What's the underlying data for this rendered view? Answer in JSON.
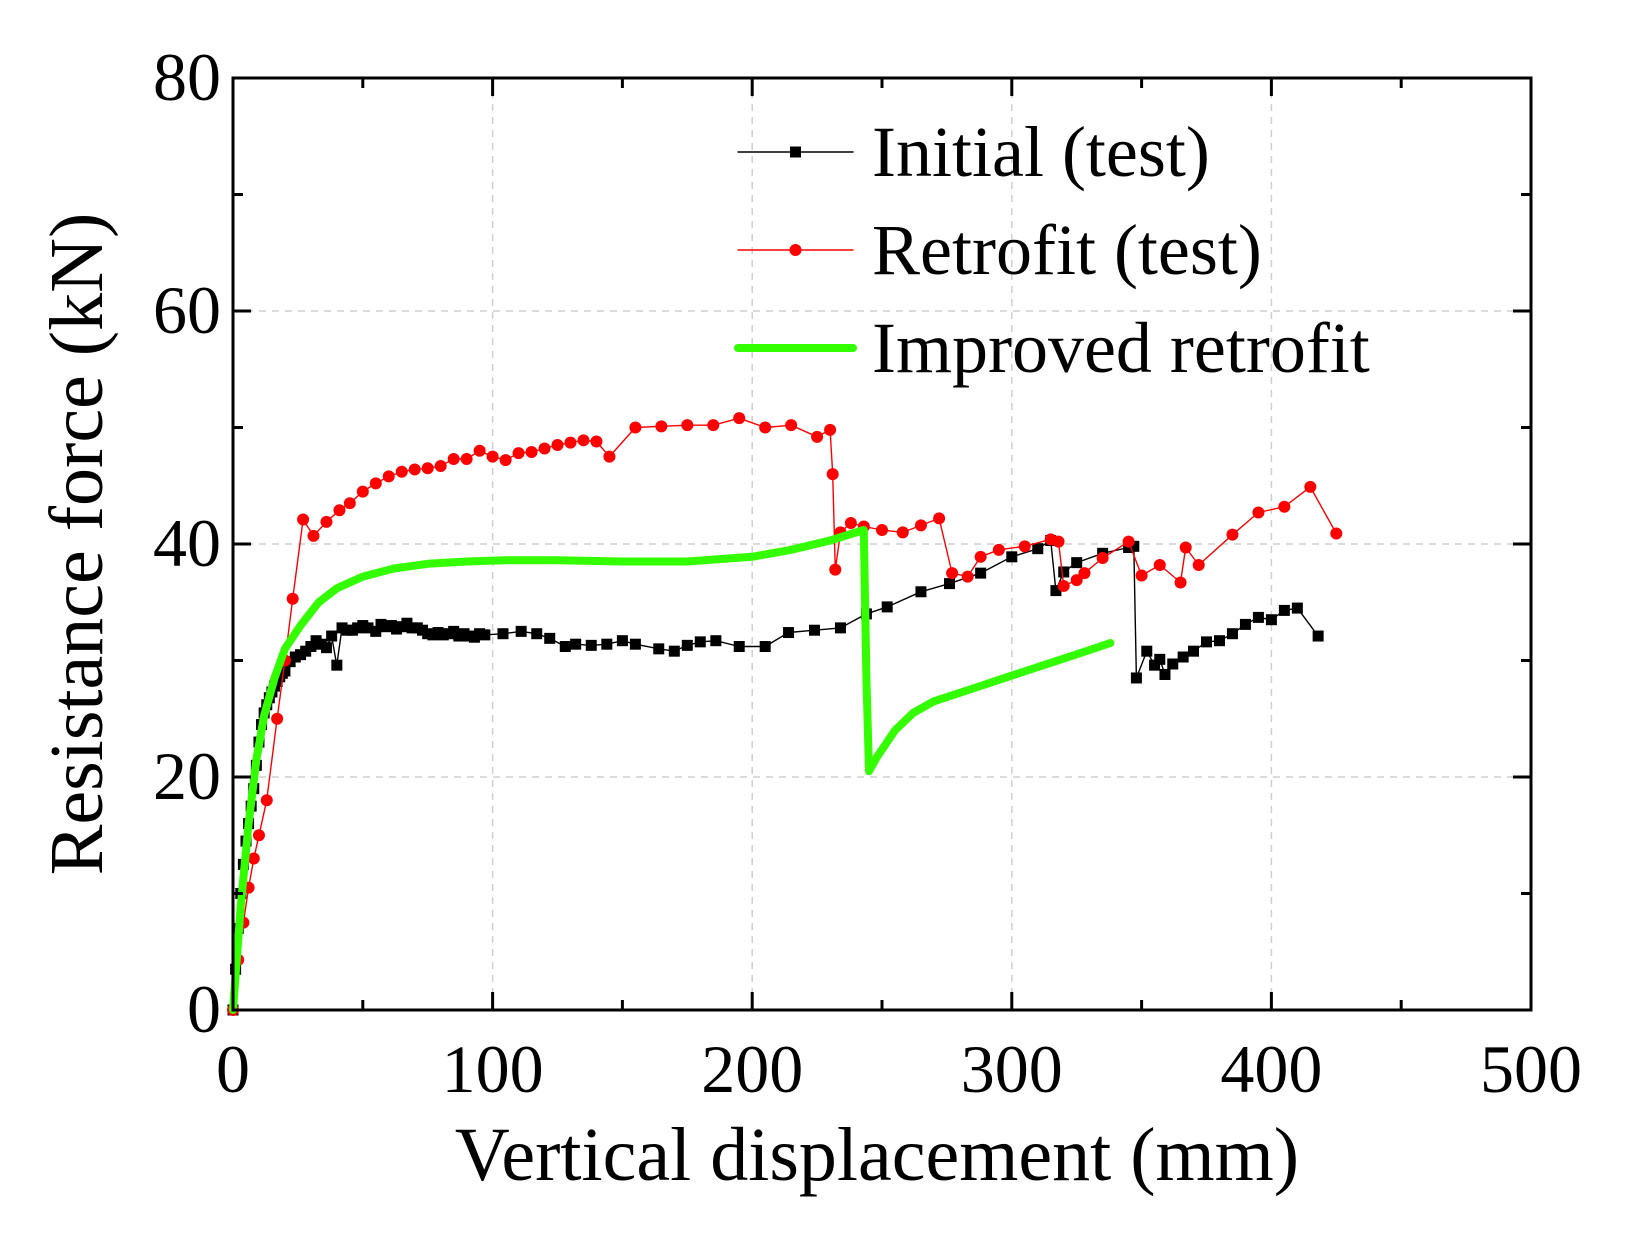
{
  "chart_data": {
    "type": "line",
    "title": "",
    "xlabel": "Vertical displacement (mm)",
    "ylabel": "Resistance force (kN)",
    "xlim": [
      0,
      500
    ],
    "ylim": [
      0,
      80
    ],
    "xticks": [
      0,
      100,
      200,
      300,
      400,
      500
    ],
    "yticks": [
      0,
      20,
      40,
      60,
      80
    ],
    "grid": true,
    "legend_position": "top-right",
    "series": [
      {
        "name": "Initial (test)",
        "color": "#000000",
        "marker": "square",
        "line": "thin",
        "x": [
          0,
          1,
          2,
          3,
          4,
          5,
          6,
          7,
          8,
          9,
          10,
          11,
          12,
          13,
          14,
          15,
          16,
          17,
          18,
          19,
          20,
          22,
          24,
          26,
          28,
          30,
          32,
          34,
          36,
          38,
          40,
          42,
          44,
          46,
          48,
          50,
          52,
          55,
          57,
          59,
          61,
          63,
          65,
          67,
          69,
          71,
          73,
          75,
          77,
          79,
          81,
          83,
          85,
          87,
          89,
          91,
          93,
          95,
          97,
          104,
          111,
          117,
          122,
          128,
          132,
          138,
          144,
          150,
          155,
          164,
          170,
          175,
          180,
          186,
          195,
          205,
          214,
          224,
          234,
          244,
          252,
          265,
          276,
          288,
          300,
          310,
          315,
          317,
          320,
          325,
          335,
          345,
          347,
          348,
          352,
          355,
          357,
          359,
          362,
          366,
          370,
          375,
          380,
          385,
          390,
          395,
          400,
          405,
          410,
          418
        ],
        "values": [
          0,
          3.5,
          7,
          10,
          12.5,
          14.5,
          16,
          17.5,
          19,
          21,
          23,
          24.5,
          25.5,
          26.2,
          26.8,
          27.3,
          27.8,
          28.2,
          28.6,
          28.9,
          29.1,
          29.9,
          30.3,
          30.5,
          30.8,
          31.2,
          31.7,
          31.4,
          31.1,
          32.1,
          29.6,
          32.8,
          32.6,
          32.6,
          32.8,
          33.0,
          32.8,
          32.5,
          33.1,
          32.9,
          33.0,
          32.7,
          32.9,
          33.2,
          32.8,
          32.8,
          32.6,
          32.3,
          32.2,
          32.4,
          32.2,
          32.3,
          32.5,
          32.1,
          32.3,
          32.1,
          32.0,
          32.3,
          32.2,
          32.3,
          32.5,
          32.3,
          31.9,
          31.2,
          31.4,
          31.3,
          31.4,
          31.7,
          31.4,
          31.0,
          30.8,
          31.3,
          31.6,
          31.7,
          31.2,
          31.2,
          32.4,
          32.6,
          32.8,
          34.0,
          34.6,
          35.9,
          36.6,
          37.5,
          38.9,
          39.6,
          40.3,
          36.0,
          37.6,
          38.4,
          39.2,
          39.7,
          39.8,
          28.5,
          30.8,
          29.6,
          30.1,
          28.8,
          29.7,
          30.3,
          30.8,
          31.6,
          31.7,
          32.3,
          33.1,
          33.7,
          33.5,
          34.3,
          34.5,
          32.1
        ]
      },
      {
        "name": "Retrofit (test)",
        "color": "#ff0000",
        "marker": "circle",
        "line": "thin",
        "x": [
          0,
          2,
          4,
          6,
          8,
          10,
          13,
          17,
          20,
          23,
          27,
          31,
          36,
          41,
          45,
          50,
          55,
          60,
          65,
          70,
          75,
          80,
          85,
          90,
          95,
          100,
          105,
          110,
          115,
          120,
          125,
          130,
          135,
          140,
          145,
          155,
          165,
          175,
          185,
          195,
          205,
          215,
          225,
          230,
          231,
          232,
          234,
          238,
          243,
          250,
          258,
          265,
          272,
          277,
          283,
          288,
          295,
          305,
          315,
          318,
          320,
          325,
          328,
          335,
          345,
          350,
          357,
          365,
          367,
          372,
          385,
          395,
          405,
          415,
          425
        ],
        "values": [
          0,
          4.3,
          7.5,
          10.5,
          13,
          15,
          18,
          25,
          30,
          35.3,
          42.1,
          40.7,
          41.9,
          42.9,
          43.5,
          44.5,
          45.2,
          45.8,
          46.2,
          46.4,
          46.5,
          46.7,
          47.3,
          47.3,
          48,
          47.5,
          47.2,
          47.8,
          47.9,
          48.2,
          48.5,
          48.7,
          48.9,
          48.8,
          47.5,
          50.0,
          50.1,
          50.2,
          50.2,
          50.8,
          50.0,
          50.2,
          49.2,
          49.8,
          46.0,
          37.8,
          41.0,
          41.8,
          41.5,
          41.2,
          41.0,
          41.6,
          42.2,
          37.5,
          37.2,
          38.9,
          39.5,
          39.8,
          40.4,
          40.2,
          36.4,
          36.9,
          37.5,
          38.8,
          40.2,
          37.3,
          38.2,
          36.7,
          39.7,
          38.2,
          40.8,
          42.7,
          43.2,
          44.9,
          40.9
        ]
      },
      {
        "name": "Improved retrofit",
        "color": "#33ff00",
        "marker": "none",
        "line": "thick",
        "x": [
          0,
          3,
          6,
          9,
          12,
          16,
          20,
          26,
          33,
          40,
          50,
          62,
          75,
          90,
          105,
          125,
          150,
          175,
          200,
          215,
          230,
          243,
          244,
          245,
          248,
          255,
          262,
          270,
          285,
          300,
          315,
          330,
          338
        ],
        "values": [
          0,
          9,
          16,
          21.5,
          25.3,
          28.5,
          31,
          33,
          35,
          36.2,
          37.2,
          37.9,
          38.3,
          38.5,
          38.6,
          38.6,
          38.5,
          38.5,
          38.9,
          39.5,
          40.3,
          41.2,
          28.5,
          20.5,
          21.7,
          24,
          25.5,
          26.5,
          27.6,
          28.7,
          29.8,
          30.9,
          31.5
        ]
      }
    ]
  }
}
